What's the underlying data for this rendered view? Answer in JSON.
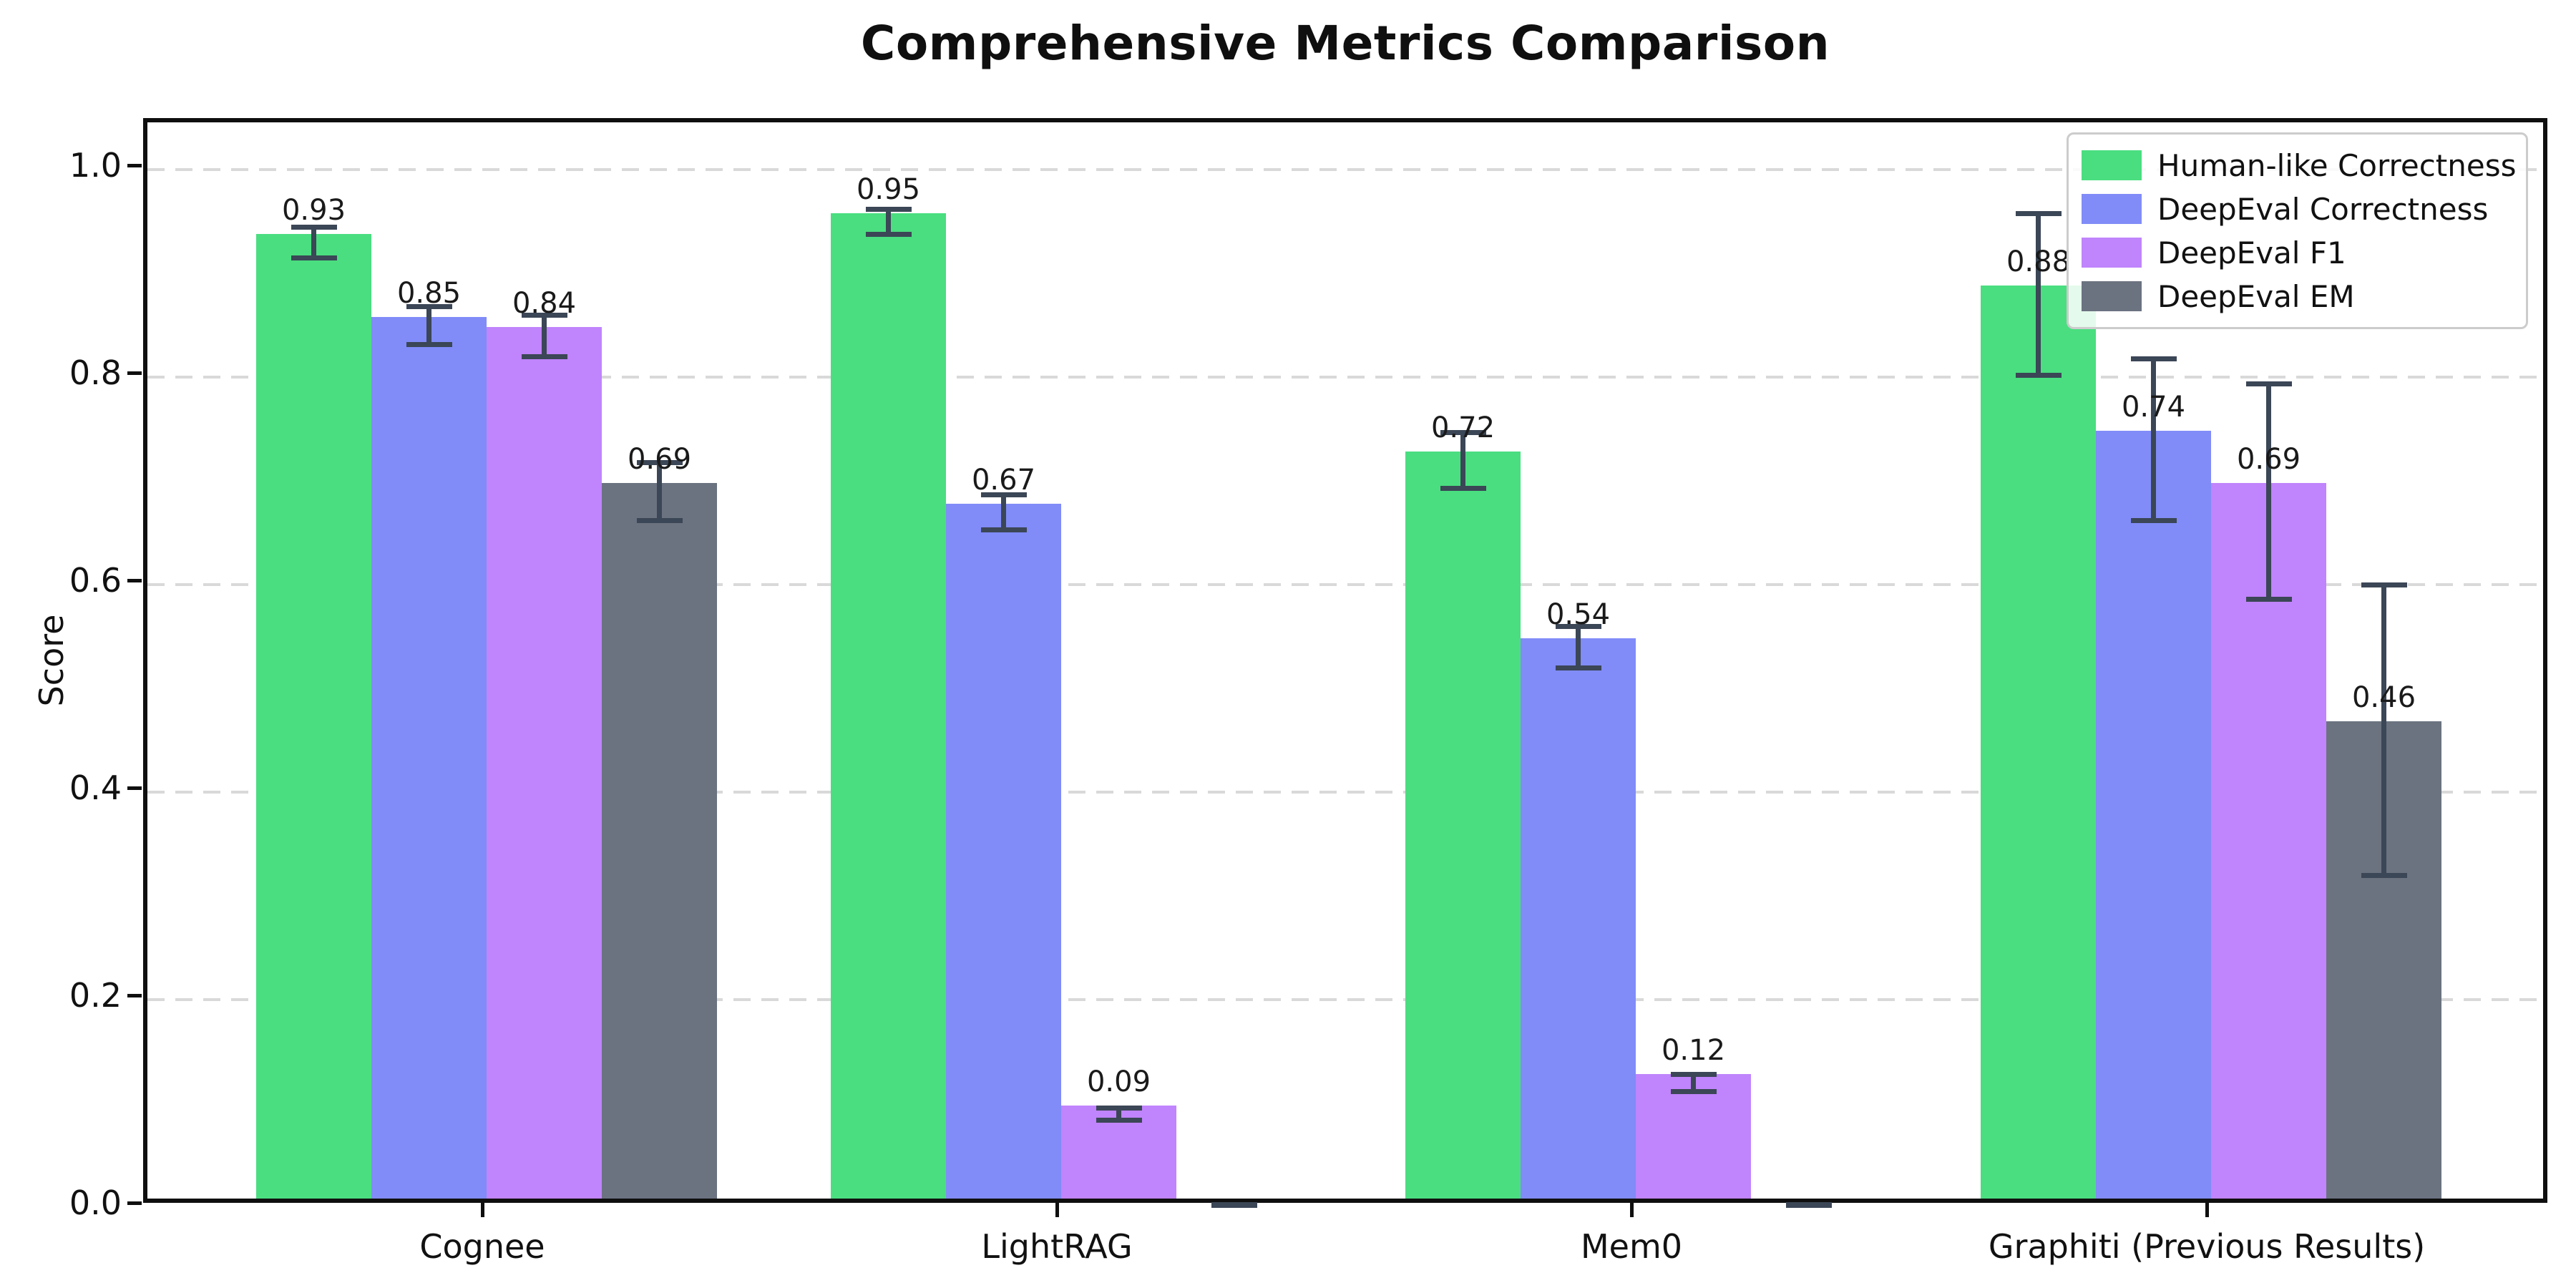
{
  "chart_data": {
    "type": "bar",
    "title": "Comprehensive Metrics Comparison",
    "ylabel": "Score",
    "xlabel": "",
    "categories": [
      "Cognee",
      "LightRAG",
      "Mem0",
      "Graphiti (Previous Results)"
    ],
    "series": [
      {
        "name": "Human-like Correctness",
        "color": "#4ade80",
        "values": [
          0.93,
          0.95,
          0.72,
          0.88
        ],
        "errors": [
          0.015,
          0.012,
          0.027,
          0.078
        ],
        "labels": [
          "0.93",
          "0.95",
          "0.72",
          "0.88"
        ]
      },
      {
        "name": "DeepEval Correctness",
        "color": "#818cf8",
        "values": [
          0.85,
          0.67,
          0.54,
          0.74
        ],
        "errors": [
          0.018,
          0.017,
          0.02,
          0.078
        ],
        "labels": [
          "0.85",
          "0.67",
          "0.54",
          "0.74"
        ]
      },
      {
        "name": "DeepEval F1",
        "color": "#c084fc",
        "values": [
          0.84,
          0.09,
          0.12,
          0.69
        ],
        "errors": [
          0.02,
          0.006,
          0.008,
          0.104
        ],
        "labels": [
          "0.84",
          "0.09",
          "0.12",
          "0.69"
        ]
      },
      {
        "name": "DeepEval EM",
        "color": "#6b7280",
        "values": [
          0.69,
          0.0,
          0.0,
          0.46
        ],
        "errors": [
          0.028,
          0.002,
          0.002,
          0.14
        ],
        "labels": [
          "0.69",
          "",
          "",
          "0.46"
        ]
      }
    ],
    "yticks": [
      "0.0",
      "0.2",
      "0.4",
      "0.6",
      "0.8",
      "1.0"
    ],
    "ylim": [
      0.0,
      1.05
    ],
    "grid": "horizontal dashed at 0.2 intervals, behind bars",
    "legend_position": "upper right",
    "error_bar_color": "#3b4656",
    "grid_color": "#d9d9d9",
    "axis_color": "#0f0f0f",
    "background_color": "#ffffff"
  }
}
